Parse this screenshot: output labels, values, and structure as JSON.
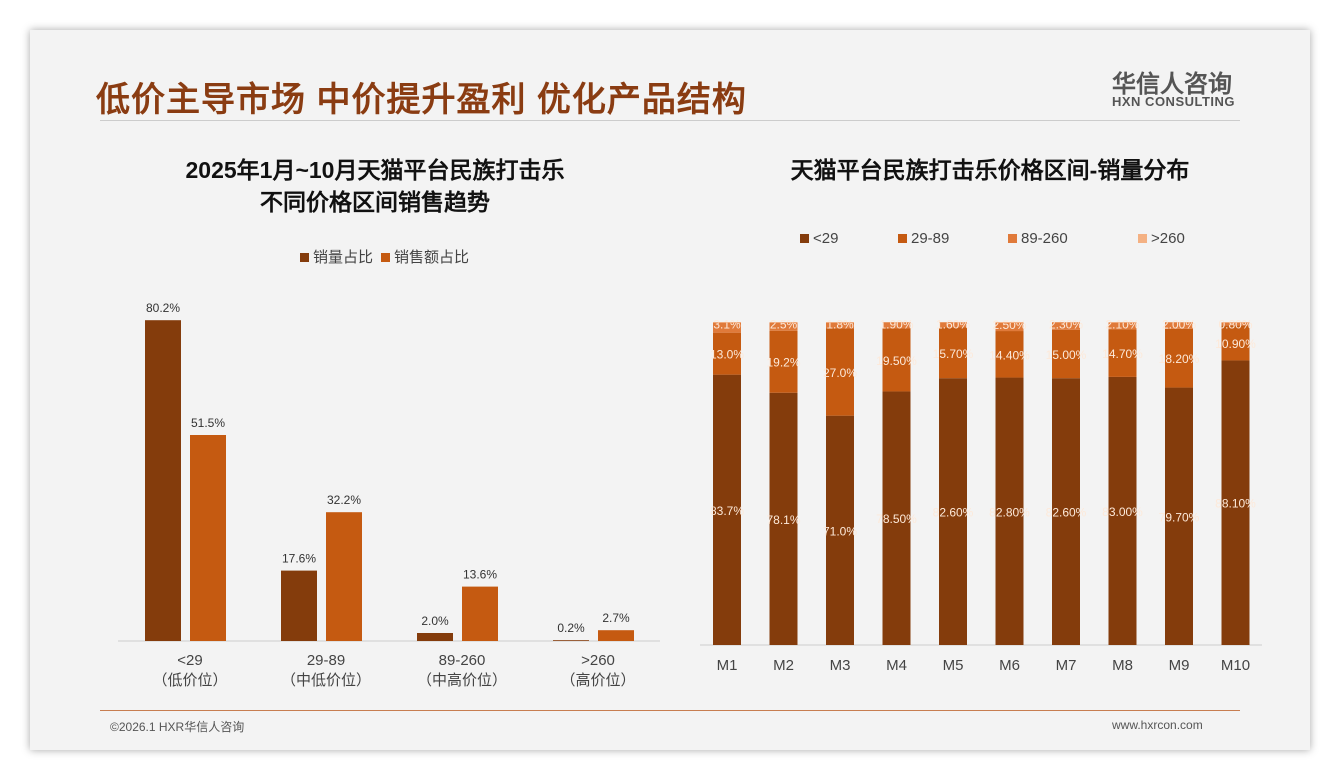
{
  "header": {
    "title": "低价主导市场 中价提升盈利 优化产品结构",
    "logo_cn": "华信人咨询",
    "logo_en": "HXN CONSULTING"
  },
  "footer": {
    "copyright": "©2026.1 HXR华信人咨询",
    "url": "www.hxrcon.com"
  },
  "colors": {
    "c1": "#843c0c",
    "c2": "#c55a11",
    "c3": "#e07a3a",
    "c4": "#f4b183"
  },
  "chart_data": [
    {
      "type": "bar",
      "title": "2025年1月~10月天猫平台民族打击乐\n不同价格区间销售趋势",
      "title_line1": "2025年1月~10月天猫平台民族打击乐",
      "title_line2": "不同价格区间销售趋势",
      "categories": [
        "<29",
        "29-89",
        "89-260",
        ">260"
      ],
      "sublabels": [
        "（低价位）",
        "（中低价位）",
        "（中高价位）",
        "（高价位）"
      ],
      "series": [
        {
          "name": "销量占比",
          "values": [
            80.2,
            17.6,
            2.0,
            0.2
          ]
        },
        {
          "name": "销售额占比",
          "values": [
            51.5,
            32.2,
            13.6,
            2.7
          ]
        }
      ],
      "ylim": [
        0,
        85
      ],
      "unit": "%"
    },
    {
      "type": "bar",
      "stacked": true,
      "title": "天猫平台民族打击乐价格区间-销量分布",
      "categories": [
        "M1",
        "M2",
        "M3",
        "M4",
        "M5",
        "M6",
        "M7",
        "M8",
        "M9",
        "M10"
      ],
      "series": [
        {
          "name": "<29",
          "values": [
            83.7,
            78.1,
            71.0,
            78.5,
            82.6,
            82.8,
            82.6,
            83.0,
            79.7,
            88.1
          ],
          "labels": [
            "83.7%",
            "78.1%",
            "71.0%",
            "78.50%",
            "82.60%",
            "82.80%",
            "82.60%",
            "83.00%",
            "79.70%",
            "88.10%"
          ]
        },
        {
          "name": "29-89",
          "values": [
            13.0,
            19.2,
            27.0,
            19.5,
            15.7,
            14.4,
            15.0,
            14.7,
            18.2,
            10.9
          ],
          "labels": [
            "13.0%",
            "19.2%",
            "27.0%",
            "19.50%",
            "15.70%",
            "14.40%",
            "15.00%",
            "14.70%",
            "18.20%",
            "10.90%"
          ]
        },
        {
          "name": "89-260",
          "values": [
            3.1,
            2.5,
            1.8,
            1.9,
            1.6,
            2.5,
            2.3,
            2.1,
            2.0,
            0.8
          ],
          "labels": [
            "3.1%",
            "2.5%",
            "1.8%",
            "1.90%",
            "1.60%",
            "2.50%",
            "2.30%",
            "2.10%",
            "2.00%",
            "0.80%"
          ]
        },
        {
          "name": ">260",
          "values": [
            0.2,
            0.2,
            0.2,
            0.1,
            0.1,
            0.3,
            0.1,
            0.2,
            0.1,
            0.2
          ]
        }
      ],
      "ylim": [
        0,
        100
      ]
    }
  ]
}
